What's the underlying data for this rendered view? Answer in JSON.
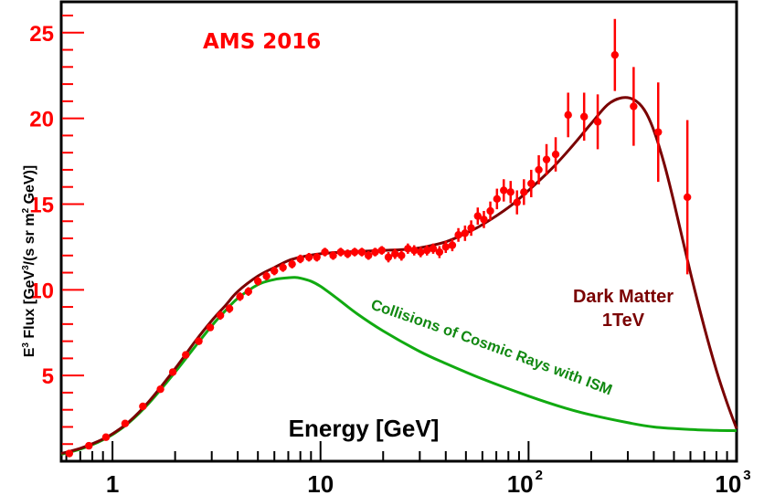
{
  "chart_data": {
    "type": "scatter",
    "title": "AMS 2016",
    "xlabel": "Energy [GeV]",
    "ylabel": {
      "prefix": "E",
      "prefix_sup": "3",
      "middle": " Flux [GeV",
      "middle_sup": "3",
      "middle2": "/(s sr m",
      "middle2_sup": "2",
      "suffix": " GeV)]"
    },
    "xscale": "log",
    "xlim": [
      0.567,
      1000
    ],
    "ylim": [
      0,
      26.8
    ],
    "grid": false,
    "y_ticks": [
      {
        "value": 5,
        "label": "5"
      },
      {
        "value": 10,
        "label": "10"
      },
      {
        "value": 15,
        "label": "15"
      },
      {
        "value": 20,
        "label": "20"
      },
      {
        "value": 25,
        "label": "25"
      }
    ],
    "x_ticks": [
      {
        "value": 1,
        "base": "1",
        "exp": ""
      },
      {
        "value": 10,
        "base": "10",
        "exp": ""
      },
      {
        "value": 100,
        "base": "10",
        "exp": "2"
      },
      {
        "value": 1000,
        "base": "10",
        "exp": "3"
      }
    ],
    "colors": {
      "data": "#ff0000",
      "dark_matter": "#7a0000",
      "ism": "#11aa11",
      "axis": "#000000",
      "y_ticks": "#ff0000"
    },
    "annotations": {
      "dark_matter_line1": "Dark Matter",
      "dark_matter_line2": "1TeV",
      "ism": "Collisions of Cosmic Rays with ISM"
    },
    "series": [
      {
        "name": "AMS 2016 data",
        "kind": "points_with_errors",
        "points": [
          {
            "x": 0.62,
            "y": 0.45,
            "err": 0.1
          },
          {
            "x": 0.77,
            "y": 0.9,
            "err": 0.1
          },
          {
            "x": 0.93,
            "y": 1.4,
            "err": 0.1
          },
          {
            "x": 1.15,
            "y": 2.2,
            "err": 0.1
          },
          {
            "x": 1.4,
            "y": 3.2,
            "err": 0.1
          },
          {
            "x": 1.7,
            "y": 4.2,
            "err": 0.12
          },
          {
            "x": 1.95,
            "y": 5.2,
            "err": 0.15
          },
          {
            "x": 2.25,
            "y": 6.2,
            "err": 0.15
          },
          {
            "x": 2.6,
            "y": 7.0,
            "err": 0.2
          },
          {
            "x": 2.95,
            "y": 7.8,
            "err": 0.2
          },
          {
            "x": 3.3,
            "y": 8.5,
            "err": 0.25
          },
          {
            "x": 3.65,
            "y": 8.9,
            "err": 0.25
          },
          {
            "x": 4.1,
            "y": 9.6,
            "err": 0.25
          },
          {
            "x": 4.5,
            "y": 9.9,
            "err": 0.25
          },
          {
            "x": 5.0,
            "y": 10.5,
            "err": 0.25
          },
          {
            "x": 5.5,
            "y": 10.8,
            "err": 0.25
          },
          {
            "x": 6.0,
            "y": 11.1,
            "err": 0.25
          },
          {
            "x": 6.6,
            "y": 11.3,
            "err": 0.25
          },
          {
            "x": 7.3,
            "y": 11.5,
            "err": 0.25
          },
          {
            "x": 8.0,
            "y": 11.8,
            "err": 0.25
          },
          {
            "x": 8.8,
            "y": 11.9,
            "err": 0.25
          },
          {
            "x": 9.6,
            "y": 11.9,
            "err": 0.25
          },
          {
            "x": 10.5,
            "y": 12.2,
            "err": 0.25
          },
          {
            "x": 11.5,
            "y": 12.0,
            "err": 0.25
          },
          {
            "x": 12.5,
            "y": 12.2,
            "err": 0.25
          },
          {
            "x": 13.5,
            "y": 12.1,
            "err": 0.25
          },
          {
            "x": 14.6,
            "y": 12.2,
            "err": 0.25
          },
          {
            "x": 15.8,
            "y": 12.2,
            "err": 0.25
          },
          {
            "x": 17.0,
            "y": 12.0,
            "err": 0.25
          },
          {
            "x": 18.3,
            "y": 12.2,
            "err": 0.25
          },
          {
            "x": 19.7,
            "y": 12.3,
            "err": 0.25
          },
          {
            "x": 21.2,
            "y": 11.9,
            "err": 0.3
          },
          {
            "x": 22.8,
            "y": 12.1,
            "err": 0.3
          },
          {
            "x": 24.5,
            "y": 12.0,
            "err": 0.3
          },
          {
            "x": 26.3,
            "y": 12.4,
            "err": 0.3
          },
          {
            "x": 28.2,
            "y": 12.3,
            "err": 0.3
          },
          {
            "x": 30.3,
            "y": 12.2,
            "err": 0.3
          },
          {
            "x": 32.5,
            "y": 12.3,
            "err": 0.3
          },
          {
            "x": 34.8,
            "y": 12.4,
            "err": 0.3
          },
          {
            "x": 37.3,
            "y": 12.2,
            "err": 0.35
          },
          {
            "x": 40.0,
            "y": 12.5,
            "err": 0.35
          },
          {
            "x": 43.0,
            "y": 12.6,
            "err": 0.35
          },
          {
            "x": 46.0,
            "y": 13.2,
            "err": 0.4
          },
          {
            "x": 49.5,
            "y": 13.3,
            "err": 0.45
          },
          {
            "x": 53.0,
            "y": 13.6,
            "err": 0.45
          },
          {
            "x": 57.0,
            "y": 14.3,
            "err": 0.5
          },
          {
            "x": 61.0,
            "y": 14.1,
            "err": 0.5
          },
          {
            "x": 65.5,
            "y": 14.6,
            "err": 0.55
          },
          {
            "x": 70.5,
            "y": 15.3,
            "err": 0.6
          },
          {
            "x": 76.0,
            "y": 15.8,
            "err": 0.65
          },
          {
            "x": 82.0,
            "y": 15.7,
            "err": 0.65
          },
          {
            "x": 88.0,
            "y": 15.1,
            "err": 0.7
          },
          {
            "x": 95.0,
            "y": 15.7,
            "err": 0.75
          },
          {
            "x": 103.0,
            "y": 16.2,
            "err": 0.8
          },
          {
            "x": 112.0,
            "y": 17.0,
            "err": 0.85
          },
          {
            "x": 122.0,
            "y": 17.6,
            "err": 0.9
          },
          {
            "x": 135.0,
            "y": 17.9,
            "err": 1.0
          },
          {
            "x": 155.0,
            "y": 20.2,
            "err": 1.3
          },
          {
            "x": 185.0,
            "y": 20.1,
            "err": 1.4
          },
          {
            "x": 215.0,
            "y": 19.8,
            "err": 1.6
          },
          {
            "x": 260.0,
            "y": 23.7,
            "err": 2.1
          },
          {
            "x": 320.0,
            "y": 20.7,
            "err": 2.3
          },
          {
            "x": 420.0,
            "y": 19.2,
            "err": 2.9
          },
          {
            "x": 580.0,
            "y": 15.4,
            "err": 4.5
          }
        ]
      },
      {
        "name": "Dark Matter 1TeV",
        "kind": "line",
        "x": [
          0.567,
          0.7,
          0.85,
          1.0,
          1.2,
          1.5,
          2.0,
          2.5,
          3.0,
          3.5,
          4.0,
          5.0,
          6.0,
          7.0,
          8.0,
          10.0,
          13.0,
          16.0,
          20.0,
          25.0,
          30.0,
          40.0,
          50.0,
          60.0,
          80.0,
          100.0,
          130.0,
          160.0,
          200.0,
          240.0,
          280.0,
          320.0,
          360.0,
          400.0,
          450.0,
          500.0,
          600.0,
          700.0,
          800.0,
          900.0,
          1000.0
        ],
        "y": [
          0.45,
          0.75,
          1.15,
          1.6,
          2.3,
          3.5,
          5.4,
          7.0,
          8.2,
          9.1,
          9.9,
          10.8,
          11.3,
          11.7,
          11.9,
          12.1,
          12.2,
          12.25,
          12.3,
          12.35,
          12.45,
          12.8,
          13.3,
          13.8,
          14.8,
          15.8,
          17.1,
          18.3,
          19.7,
          20.8,
          21.2,
          21.1,
          20.5,
          19.3,
          17.3,
          15.1,
          11.0,
          7.8,
          5.3,
          3.4,
          1.9
        ]
      },
      {
        "name": "Collisions of Cosmic Rays with ISM",
        "kind": "line",
        "x": [
          0.567,
          0.7,
          0.85,
          1.0,
          1.2,
          1.5,
          2.0,
          2.5,
          3.0,
          3.5,
          4.0,
          5.0,
          6.0,
          7.0,
          7.5,
          8.0,
          9.0,
          10.0,
          12.0,
          15.0,
          20.0,
          30.0,
          40.0,
          60.0,
          100.0,
          150.0,
          200.0,
          300.0,
          400.0,
          600.0,
          800.0,
          1000.0
        ],
        "y": [
          0.4,
          0.7,
          1.1,
          1.55,
          2.25,
          3.4,
          5.2,
          6.7,
          7.9,
          8.8,
          9.5,
          10.3,
          10.6,
          10.7,
          10.72,
          10.68,
          10.5,
          10.2,
          9.5,
          8.6,
          7.6,
          6.4,
          5.7,
          4.8,
          3.8,
          3.1,
          2.7,
          2.25,
          2.0,
          1.85,
          1.8,
          1.78
        ]
      }
    ]
  }
}
